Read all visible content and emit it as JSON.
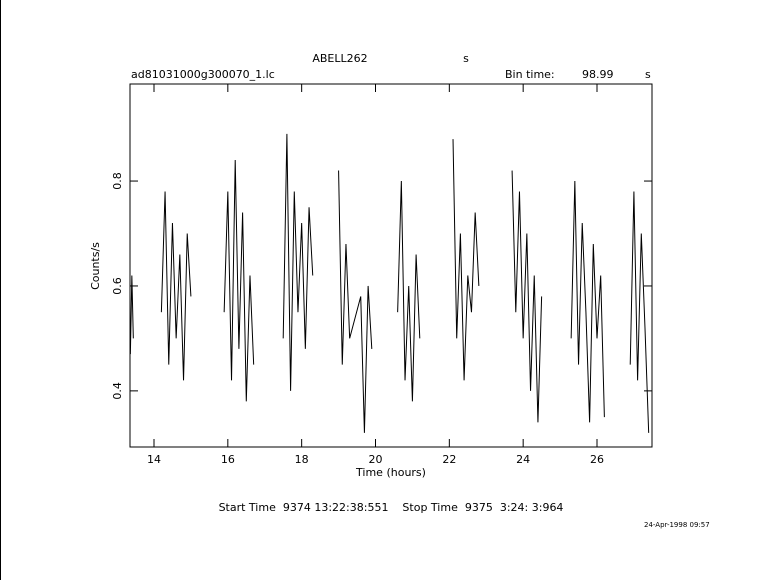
{
  "chart_data": {
    "type": "line",
    "title": "ABELL262",
    "title_unit": "s",
    "subtitle": "ad81031000g300070_1.lc",
    "bin_time_label": "Bin time:",
    "bin_time": "98.99",
    "bin_time_unit": "s",
    "xlabel": "Time (hours)",
    "ylabel": "Counts/s",
    "footer": "Start Time  9374 13:22:38:551    Stop Time  9375  3:24: 3:964",
    "date": "24-Apr-1998 09:57",
    "color": "#000000",
    "x": [
      13.36,
      13.4,
      13.44,
      null,
      14.2,
      14.3,
      14.4,
      14.5,
      14.6,
      14.7,
      14.8,
      14.9,
      15.0,
      null,
      15.9,
      16.0,
      16.1,
      16.2,
      16.3,
      16.4,
      16.5,
      16.6,
      16.7,
      null,
      17.5,
      17.6,
      17.7,
      17.8,
      17.9,
      18.0,
      18.1,
      18.2,
      18.3,
      null,
      19.0,
      19.1,
      19.2,
      19.3,
      19.6,
      19.7,
      19.8,
      19.9,
      null,
      20.6,
      20.7,
      20.8,
      20.9,
      21.0,
      21.1,
      21.2,
      null,
      22.1,
      22.2,
      22.3,
      22.4,
      22.5,
      22.6,
      22.7,
      22.8,
      null,
      23.7,
      23.8,
      23.9,
      24.0,
      24.1,
      24.2,
      24.3,
      24.4,
      24.5,
      null,
      25.3,
      25.4,
      25.5,
      25.6,
      25.7,
      25.8,
      25.9,
      26.0,
      26.1,
      26.2,
      null,
      26.9,
      27.0,
      27.1,
      27.2,
      27.3,
      27.4
    ],
    "values": [
      0.47,
      0.62,
      0.5,
      null,
      0.55,
      0.78,
      0.45,
      0.72,
      0.5,
      0.66,
      0.42,
      0.7,
      0.58,
      null,
      0.55,
      0.78,
      0.42,
      0.84,
      0.48,
      0.74,
      0.38,
      0.62,
      0.45,
      null,
      0.5,
      0.89,
      0.4,
      0.78,
      0.55,
      0.72,
      0.48,
      0.75,
      0.62,
      null,
      0.82,
      0.45,
      0.68,
      0.5,
      0.58,
      0.32,
      0.6,
      0.48,
      null,
      0.55,
      0.8,
      0.42,
      0.6,
      0.38,
      0.66,
      0.5,
      null,
      0.88,
      0.5,
      0.7,
      0.42,
      0.62,
      0.55,
      0.74,
      0.6,
      null,
      0.82,
      0.55,
      0.78,
      0.5,
      0.7,
      0.4,
      0.62,
      0.34,
      0.58,
      null,
      0.5,
      0.8,
      0.45,
      0.72,
      0.55,
      0.34,
      0.68,
      0.5,
      0.62,
      0.35,
      null,
      0.45,
      0.78,
      0.42,
      0.7,
      0.52,
      0.32
    ],
    "xlim": [
      13.35,
      27.49
    ],
    "ylim": [
      0.293,
      0.985
    ],
    "xticks": [
      14,
      16,
      18,
      20,
      22,
      24,
      26
    ],
    "yticks": [
      0.4,
      0.6,
      0.8
    ]
  }
}
